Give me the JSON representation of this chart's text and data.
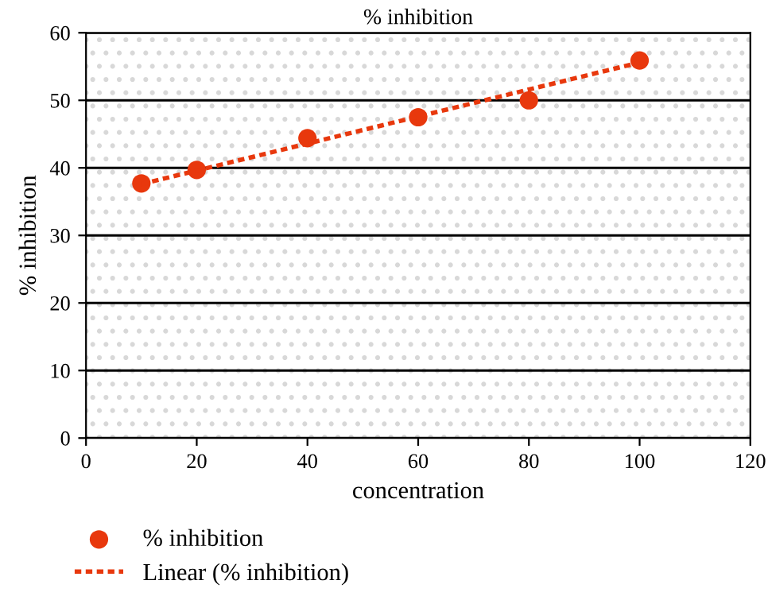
{
  "chart_data": {
    "type": "scatter",
    "title": "% inhibition",
    "xlabel": "concentration",
    "ylabel": "% inhibition",
    "x": [
      10,
      20,
      40,
      60,
      80,
      100
    ],
    "series": [
      {
        "name": "% inhibition",
        "color": "#e8380d",
        "marker": "circle",
        "values": [
          37.7,
          39.7,
          44.4,
          47.5,
          50.0,
          55.9
        ]
      },
      {
        "name": "Linear (% inhibition)",
        "type": "line",
        "color": "#e8380d",
        "line_style": "dotted",
        "marker": "none",
        "x": [
          10,
          100
        ],
        "values": [
          37.6,
          55.6
        ]
      }
    ],
    "xlim": [
      0,
      120
    ],
    "xticks": [
      0,
      20,
      40,
      60,
      80,
      100,
      120
    ],
    "ylim": [
      0,
      60
    ],
    "yticks": [
      0,
      10,
      20,
      30,
      40,
      50,
      60
    ],
    "grid": "y",
    "legend": "bottom left"
  }
}
